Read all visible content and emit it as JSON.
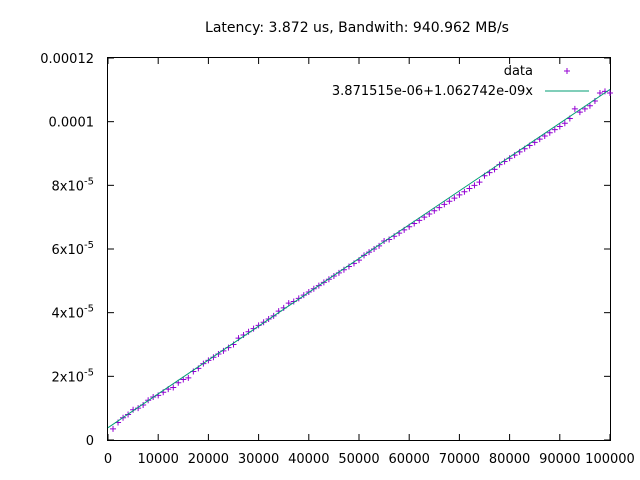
{
  "chart_data": {
    "type": "scatter",
    "title": "Latency: 3.872 us, Bandwith: 940.962 MB/s",
    "xlabel": "",
    "ylabel": "",
    "xlim": [
      0,
      100000
    ],
    "ylim": [
      0,
      0.00012
    ],
    "grid": false,
    "legend_position": "top-right",
    "x_ticks": [
      {
        "value": 0,
        "label": "0"
      },
      {
        "value": 10000,
        "label": "10000"
      },
      {
        "value": 20000,
        "label": "20000"
      },
      {
        "value": 30000,
        "label": "30000"
      },
      {
        "value": 40000,
        "label": "40000"
      },
      {
        "value": 50000,
        "label": "50000"
      },
      {
        "value": 60000,
        "label": "60000"
      },
      {
        "value": 70000,
        "label": "70000"
      },
      {
        "value": 80000,
        "label": "80000"
      },
      {
        "value": 90000,
        "label": "90000"
      },
      {
        "value": 100000,
        "label": "100000"
      }
    ],
    "y_ticks": [
      {
        "value": 0,
        "mantissa": "0",
        "exponent": ""
      },
      {
        "value": 2e-05,
        "mantissa": "2x10",
        "exponent": "-5"
      },
      {
        "value": 4e-05,
        "mantissa": "4x10",
        "exponent": "-5"
      },
      {
        "value": 6e-05,
        "mantissa": "6x10",
        "exponent": "-5"
      },
      {
        "value": 8e-05,
        "mantissa": "8x10",
        "exponent": "-5"
      },
      {
        "value": 0.0001,
        "mantissa": "0.0001",
        "exponent": ""
      },
      {
        "value": 0.00012,
        "mantissa": "0.00012",
        "exponent": ""
      }
    ],
    "series": [
      {
        "name": "data",
        "kind": "points",
        "marker": "plus",
        "color": "#9400d3",
        "x": [
          1000,
          2000,
          3000,
          4000,
          5000,
          6000,
          7000,
          8000,
          9000,
          10000,
          11000,
          12000,
          13000,
          14000,
          15000,
          16000,
          17000,
          18000,
          19000,
          20000,
          21000,
          22000,
          23000,
          24000,
          25000,
          26000,
          27000,
          28000,
          29000,
          30000,
          31000,
          32000,
          33000,
          34000,
          35000,
          36000,
          37000,
          38000,
          39000,
          40000,
          41000,
          42000,
          43000,
          44000,
          45000,
          46000,
          47000,
          48000,
          49000,
          50000,
          51000,
          52000,
          53000,
          54000,
          55000,
          56000,
          57000,
          58000,
          59000,
          60000,
          61000,
          62000,
          63000,
          64000,
          65000,
          66000,
          67000,
          68000,
          69000,
          70000,
          71000,
          72000,
          73000,
          74000,
          75000,
          76000,
          77000,
          78000,
          79000,
          80000,
          81000,
          82000,
          83000,
          84000,
          85000,
          86000,
          87000,
          88000,
          89000,
          90000,
          91000,
          92000,
          93000,
          94000,
          95000,
          96000,
          97000,
          98000,
          99000,
          100000
        ],
        "y": [
          3.5e-06,
          5.5e-06,
          7e-06,
          8e-06,
          9.5e-06,
          1e-05,
          1.1e-05,
          1.25e-05,
          1.35e-05,
          1.4e-05,
          1.5e-05,
          1.6e-05,
          1.65e-05,
          1.8e-05,
          1.9e-05,
          1.95e-05,
          2.15e-05,
          2.25e-05,
          2.4e-05,
          2.5e-05,
          2.6e-05,
          2.7e-05,
          2.8e-05,
          2.9e-05,
          3e-05,
          3.2e-05,
          3.3e-05,
          3.4e-05,
          3.5e-05,
          3.6e-05,
          3.7e-05,
          3.8e-05,
          3.9e-05,
          4.05e-05,
          4.15e-05,
          4.3e-05,
          4.35e-05,
          4.45e-05,
          4.55e-05,
          4.65e-05,
          4.75e-05,
          4.85e-05,
          4.95e-05,
          5.05e-05,
          5.15e-05,
          5.25e-05,
          5.35e-05,
          5.45e-05,
          5.55e-05,
          5.65e-05,
          5.8e-05,
          5.9e-05,
          6e-05,
          6.1e-05,
          6.25e-05,
          6.3e-05,
          6.4e-05,
          6.5e-05,
          6.6e-05,
          6.7e-05,
          6.8e-05,
          6.9e-05,
          7e-05,
          7.1e-05,
          7.2e-05,
          7.3e-05,
          7.4e-05,
          7.5e-05,
          7.6e-05,
          7.7e-05,
          7.8e-05,
          7.9e-05,
          8e-05,
          8.1e-05,
          8.3e-05,
          8.4e-05,
          8.5e-05,
          8.65e-05,
          8.75e-05,
          8.85e-05,
          8.95e-05,
          9.05e-05,
          9.15e-05,
          9.25e-05,
          9.35e-05,
          9.45e-05,
          9.55e-05,
          9.65e-05,
          9.75e-05,
          9.85e-05,
          9.95e-05,
          0.000101,
          0.000104,
          0.000103,
          0.000104,
          0.000105,
          0.0001065,
          0.000109,
          0.0001095,
          0.000109
        ]
      },
      {
        "name": "3.871515e-06+1.062742e-09x",
        "kind": "line",
        "color": "#009e73",
        "intercept": 3.871515e-06,
        "slope": 1.062742e-09
      }
    ]
  }
}
